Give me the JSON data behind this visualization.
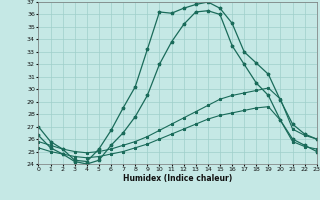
{
  "xlabel": "Humidex (Indice chaleur)",
  "bg_color": "#c5e8e5",
  "grid_color": "#9fcfca",
  "line_color": "#1a6b5a",
  "xlim": [
    0,
    23
  ],
  "ylim": [
    24,
    37
  ],
  "yticks": [
    24,
    25,
    26,
    27,
    28,
    29,
    30,
    31,
    32,
    33,
    34,
    35,
    36,
    37
  ],
  "xticks": [
    0,
    1,
    2,
    3,
    4,
    5,
    6,
    7,
    8,
    9,
    10,
    11,
    12,
    13,
    14,
    15,
    16,
    17,
    18,
    19,
    20,
    21,
    22,
    23
  ],
  "line1_x": [
    0,
    1,
    2,
    3,
    4,
    5,
    6,
    7,
    8,
    9,
    10,
    11,
    12,
    13,
    14,
    15,
    16,
    17,
    18,
    19,
    20,
    21,
    22,
    23
  ],
  "line1_y": [
    27.0,
    25.8,
    25.2,
    24.3,
    24.2,
    25.2,
    26.7,
    28.5,
    30.2,
    33.2,
    36.2,
    36.1,
    36.5,
    36.8,
    37.0,
    36.5,
    35.3,
    33.0,
    32.1,
    31.2,
    29.1,
    27.2,
    26.4,
    26.0
  ],
  "line2_x": [
    0,
    1,
    2,
    3,
    4,
    5,
    6,
    7,
    8,
    9,
    10,
    11,
    12,
    13,
    14,
    15,
    16,
    17,
    18,
    19,
    20,
    21,
    22,
    23
  ],
  "line2_y": [
    26.3,
    25.3,
    24.8,
    24.2,
    24.0,
    24.3,
    25.5,
    26.5,
    27.8,
    29.5,
    32.0,
    33.8,
    35.2,
    36.2,
    36.3,
    36.0,
    33.5,
    32.0,
    30.5,
    29.5,
    27.5,
    26.0,
    25.5,
    25.0
  ],
  "line3_x": [
    0,
    1,
    2,
    3,
    4,
    5,
    6,
    7,
    8,
    9,
    10,
    11,
    12,
    13,
    14,
    15,
    16,
    17,
    18,
    19,
    20,
    21,
    22,
    23
  ],
  "line3_y": [
    25.8,
    25.5,
    25.2,
    25.0,
    24.9,
    25.0,
    25.2,
    25.5,
    25.8,
    26.2,
    26.7,
    27.2,
    27.7,
    28.2,
    28.7,
    29.2,
    29.5,
    29.7,
    29.9,
    30.1,
    29.2,
    26.8,
    26.3,
    26.0
  ],
  "line4_x": [
    0,
    1,
    2,
    3,
    4,
    5,
    6,
    7,
    8,
    9,
    10,
    11,
    12,
    13,
    14,
    15,
    16,
    17,
    18,
    19,
    20,
    21,
    22,
    23
  ],
  "line4_y": [
    25.3,
    25.0,
    24.8,
    24.6,
    24.5,
    24.6,
    24.8,
    25.0,
    25.3,
    25.6,
    26.0,
    26.4,
    26.8,
    27.2,
    27.6,
    27.9,
    28.1,
    28.3,
    28.5,
    28.6,
    27.5,
    25.8,
    25.4,
    25.2
  ]
}
